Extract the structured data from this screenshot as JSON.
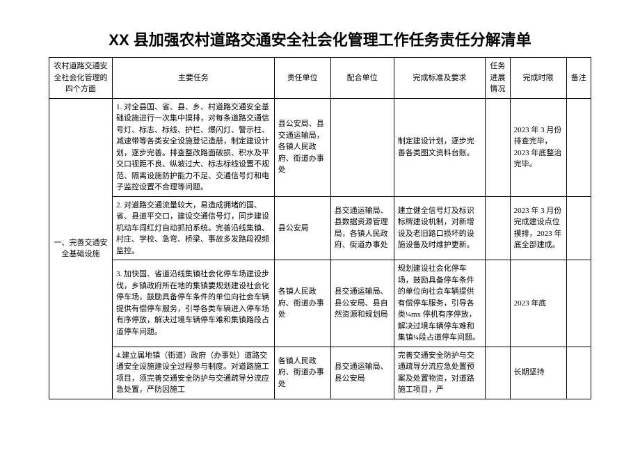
{
  "title": "XX 县加强农村道路交通安全社会化管理工作任务责任分解清单",
  "headers": {
    "aspect": "农村道路交通安全社会化管理的四个方面",
    "task": "主要任务",
    "resp": "责任单位",
    "coop": "配合单位",
    "standard": "完成标准及要求",
    "progress": "任务进展情况",
    "deadline": "完成时限",
    "remark": "备注"
  },
  "aspect1": "一、完善交通安全基础设施",
  "rows": [
    {
      "task": "1. 对全县国、省、县、乡、村道路交通安全基础设施进行一次集中摸排，对每条道路交通信号灯、标志、标线、护栏、爆闪灯、警示柱、减速带等各类安全设施登记造册，制定建设计划，逐步完善。排查整改路面破损、积水及平交口视距不良、纵坡过大、标志标线设置不规范、隔离设施防护能力不足、交通信号灯和电子监控设置不合理等问题。",
      "resp": "县公安局、县交通运输局，各镇人民政府、街道办事处",
      "coop": "",
      "standard": "制定建设计划，逐步完善各类图文资料台账。",
      "deadline": "2023 年 3 月份排查完毕，2023 年底整治完毕。"
    },
    {
      "task": "2. 对道路交通流量较大，易造成拥堵的国、省、县道平交口，建设交通信号灯，同步建设机动车闯红灯自动抓拍系统。完善沿线集镇、村庄、学校、急弯、桥梁、事故多发路段视频监控。",
      "resp": "县公安局",
      "coop": "县交通运输局、县数据资源管理局，各镇人民政府、街道办事处",
      "standard": "建立健全信号灯及标识标牌建设机制，对新增设及老旧路口损坏的设施设备及时维护更新。",
      "deadline": "2023 年 3 月份完成建设点位摸排，2023 年底全部建成。"
    },
    {
      "task": "3. 加快国、省道沿线集镇社会化停车场建设步伐，乡镇政府所在地的集镇要规划建设社会化停车场，鼓励具备停车条件的单位向社会车辆提供有偿停车服务，引导各类车辆进入停车场有序停放，解决过境车辆停车难和集镇路段占道停车问题。",
      "resp": "各镇人民政府、街道办事处",
      "coop": "县交通运输局、县公安局、县自然资源和规划局",
      "standard": "规划建设社会化停车场，鼓励具备停车条件的单位向社会车辆提供有偿停车服务，引导各类¼mx 停机有序停放，解决过境车辆停车难和集镇¼段占道停车问题。",
      "deadline": "2023 年底"
    },
    {
      "task": "4.建立属地镇（街道）政府（办事处）道路交通安全设施建设全过程参与制度。对道路施工项目，须完善交通安全防护与交通疏导分流应急处置，严防因施工",
      "resp": "各镇人民政府、街道办事处",
      "coop": "县交通运输局、县公安局",
      "standard": "完善交通安全防护与交通疏导分流应急处置预案及处置物资，对道路施工项目，严",
      "deadline": "长期坚持"
    }
  ]
}
